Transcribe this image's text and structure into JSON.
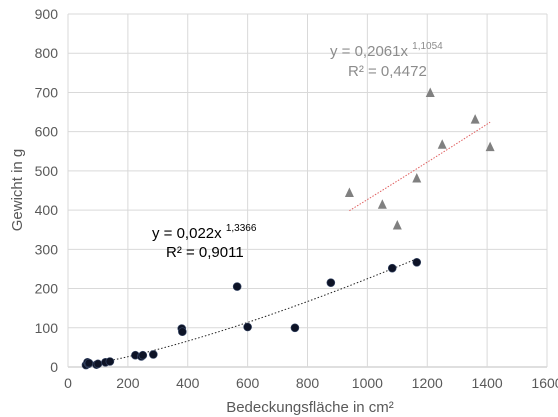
{
  "chart_data": {
    "type": "scatter",
    "xlabel": "Bedeckungsfläche in cm²",
    "ylabel": "Gewicht in g",
    "xlim": [
      0,
      1600
    ],
    "ylim": [
      0,
      900
    ],
    "xticks": [
      0,
      200,
      400,
      600,
      800,
      1000,
      1200,
      1400,
      1600
    ],
    "yticks": [
      0,
      100,
      200,
      300,
      400,
      500,
      600,
      700,
      800,
      900
    ],
    "grid": true,
    "colors": {
      "grid": "#d9d9d9",
      "text": "#595959",
      "circles": "#0d1326",
      "triangles": "#808080",
      "trend_circles": "#222222",
      "trend_triangles": "#e06060",
      "eq_circles": "#000000",
      "eq_triangles": "#8c8c8c"
    },
    "series": [
      {
        "marker": "circle",
        "x": [
          60,
          65,
          68,
          70,
          95,
          100,
          125,
          140,
          225,
          245,
          250,
          285,
          380,
          382,
          565,
          600,
          758,
          878,
          1083,
          1165
        ],
        "y": [
          5,
          12,
          8,
          10,
          6,
          8,
          12,
          14,
          30,
          27,
          30,
          32,
          98,
          90,
          205,
          102,
          100,
          215,
          252,
          267
        ],
        "trendline": {
          "type": "power",
          "a": 0.022,
          "b": 1.3366,
          "x_range": [
            60,
            1165
          ],
          "equation_prefix": "y = 0,022x",
          "equation_exponent": "1,3366",
          "r2_label": "R² = 0,9011"
        }
      },
      {
        "marker": "triangle",
        "x": [
          940,
          1050,
          1100,
          1165,
          1210,
          1250,
          1360,
          1410
        ],
        "y": [
          445,
          415,
          362,
          482,
          700,
          568,
          632,
          562
        ],
        "trendline": {
          "type": "power",
          "a": 0.2061,
          "b": 1.1054,
          "x_range": [
            940,
            1410
          ],
          "equation_prefix": "y = 0,2061x",
          "equation_exponent": "1,1054",
          "r2_label": "R² = 0,4472"
        }
      }
    ]
  }
}
